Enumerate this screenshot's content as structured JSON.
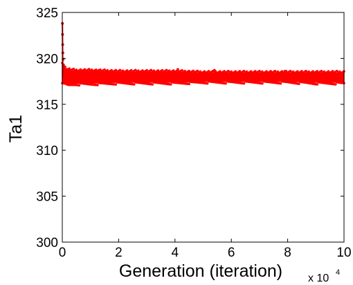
{
  "chart_data": {
    "type": "scatter",
    "title": "",
    "xlabel": "Generation (iteration)",
    "ylabel": "Ta1",
    "x_multiplier_label": "x 10",
    "x_multiplier_exp": "4",
    "xlim": [
      0,
      10
    ],
    "ylim": [
      300,
      325
    ],
    "x_ticks": [
      "0",
      "2",
      "4",
      "6",
      "8",
      "10"
    ],
    "y_ticks": [
      "300",
      "305",
      "310",
      "315",
      "320",
      "325"
    ],
    "grid": false,
    "legend": "none",
    "series_color": "#ff0000",
    "marker_color": "#cc0000",
    "band": {
      "x": [
        0.0,
        0.05,
        0.1,
        0.2,
        0.5,
        1,
        2,
        3,
        4,
        5,
        6,
        7,
        8,
        9,
        9.5,
        10
      ],
      "upper": [
        319.5,
        319.0,
        318.9,
        318.7,
        318.6,
        318.6,
        318.5,
        318.5,
        318.5,
        318.4,
        318.4,
        318.4,
        318.4,
        318.4,
        318.4,
        318.4
      ],
      "lower": [
        317.3,
        317.3,
        317.3,
        317.2,
        317.3,
        317.3,
        317.4,
        317.4,
        317.4,
        317.5,
        317.5,
        317.5,
        317.5,
        317.4,
        317.4,
        317.4
      ]
    },
    "initial_spike": {
      "x": [
        0.005,
        0.01,
        0.015,
        0.02,
        0.03,
        0.04
      ],
      "y": [
        323.8,
        322.6,
        321.5,
        320.6,
        319.9,
        319.3
      ]
    },
    "outliers": {
      "x": [
        1.3,
        2.3,
        4.1,
        5.4,
        7.9,
        9.0
      ],
      "y": [
        318.7,
        318.6,
        318.8,
        318.7,
        318.6,
        318.5
      ]
    }
  }
}
